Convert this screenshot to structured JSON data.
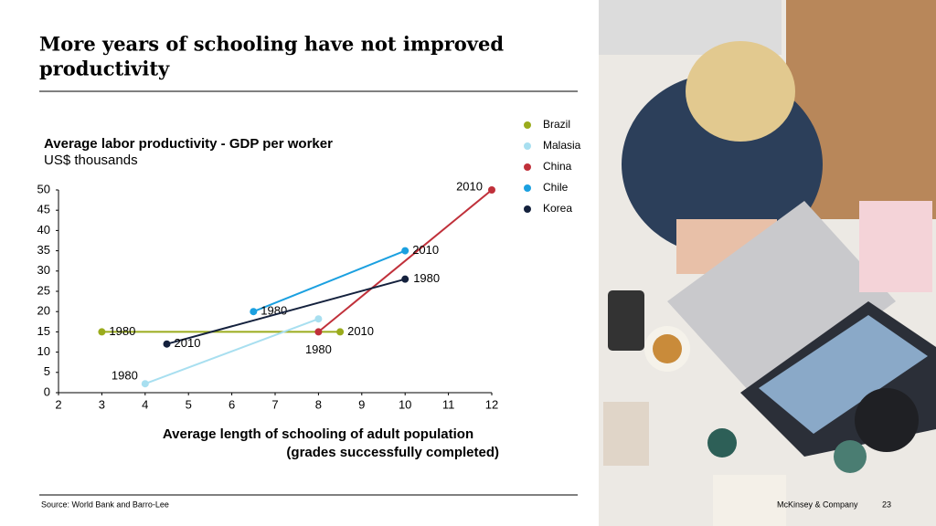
{
  "title": "More years of schooling have not improved productivity",
  "source": "Source: World Bank and Barro-Lee",
  "footer": "McKinsey & Company",
  "page_number": "23",
  "chart_data": {
    "type": "line",
    "title": "Average labor productivity - GDP per worker",
    "subtitle": "US$ thousands",
    "x_label": [
      "Average length of schooling of adult population",
      "(grades successfully completed)"
    ],
    "xlim": [
      2,
      12
    ],
    "xticks": [
      2,
      3,
      4,
      5,
      6,
      7,
      8,
      9,
      10,
      11,
      12
    ],
    "ylim": [
      0,
      50
    ],
    "yticks": [
      0,
      5,
      10,
      15,
      20,
      25,
      30,
      35,
      40,
      45,
      50
    ],
    "legend": "top-right",
    "series": [
      {
        "name": "Brazil",
        "color": "#9aab1c",
        "x": [
          3,
          8.5
        ],
        "values": [
          15,
          15
        ],
        "labels": [
          "1980",
          "2010"
        ]
      },
      {
        "name": "Malasia",
        "color": "#a8dff0",
        "x": [
          4,
          8
        ],
        "values": [
          2.2,
          18.2
        ],
        "labels": [
          "1980",
          null
        ]
      },
      {
        "name": "China",
        "color": "#c0303a",
        "x": [
          8,
          12
        ],
        "values": [
          15,
          50
        ],
        "labels": [
          "1980",
          "2010"
        ]
      },
      {
        "name": "Chile",
        "color": "#1ba0e0",
        "x": [
          6.5,
          10
        ],
        "values": [
          20,
          35
        ],
        "labels": [
          "1980",
          "2010"
        ]
      },
      {
        "name": "Korea",
        "color": "#14213d",
        "x": [
          10,
          4.5
        ],
        "values": [
          28,
          12
        ],
        "labels": [
          "1980",
          "2010"
        ]
      }
    ]
  }
}
